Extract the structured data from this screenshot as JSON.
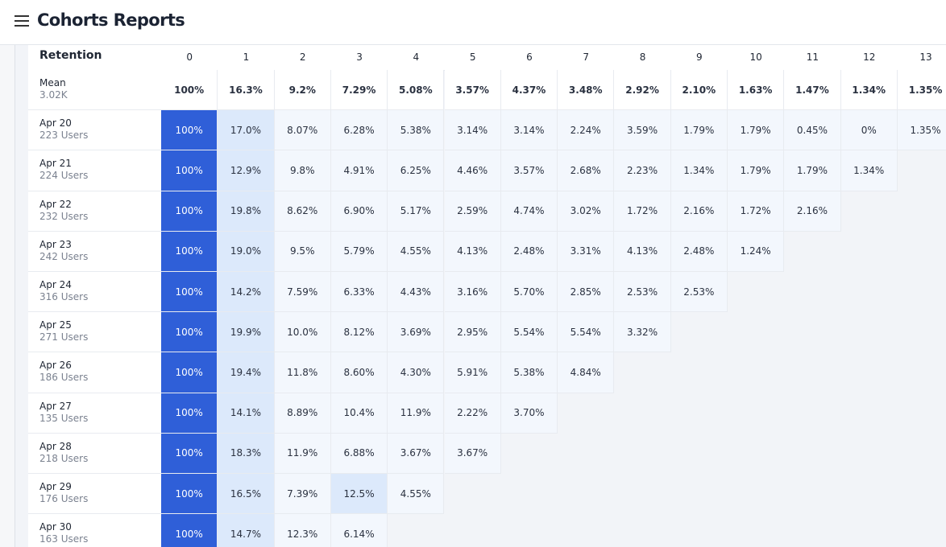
{
  "header": {
    "title": "Cohorts Reports"
  },
  "table": {
    "corner": "Retention",
    "columns": [
      "0",
      "1",
      "2",
      "3",
      "4",
      "5",
      "6",
      "7",
      "8",
      "9",
      "10",
      "11",
      "12",
      "13"
    ],
    "mean": {
      "label": "Mean",
      "sub": "3.02K",
      "cells": [
        "100%",
        "16.3%",
        "9.2%",
        "7.29%",
        "5.08%",
        "3.57%",
        "4.37%",
        "3.48%",
        "2.92%",
        "2.10%",
        "1.63%",
        "1.47%",
        "1.34%",
        "1.35%"
      ]
    },
    "rows": [
      {
        "label": "Apr 20",
        "sub": "223 Users",
        "cells": [
          "100%",
          "17.0%",
          "8.07%",
          "6.28%",
          "5.38%",
          "3.14%",
          "3.14%",
          "2.24%",
          "3.59%",
          "1.79%",
          "1.79%",
          "0.45%",
          "0%",
          "1.35%"
        ]
      },
      {
        "label": "Apr 21",
        "sub": "224 Users",
        "cells": [
          "100%",
          "12.9%",
          "9.8%",
          "4.91%",
          "6.25%",
          "4.46%",
          "3.57%",
          "2.68%",
          "2.23%",
          "1.34%",
          "1.79%",
          "1.79%",
          "1.34%"
        ]
      },
      {
        "label": "Apr 22",
        "sub": "232 Users",
        "cells": [
          "100%",
          "19.8%",
          "8.62%",
          "6.90%",
          "5.17%",
          "2.59%",
          "4.74%",
          "3.02%",
          "1.72%",
          "2.16%",
          "1.72%",
          "2.16%"
        ]
      },
      {
        "label": "Apr 23",
        "sub": "242 Users",
        "cells": [
          "100%",
          "19.0%",
          "9.5%",
          "5.79%",
          "4.55%",
          "4.13%",
          "2.48%",
          "3.31%",
          "4.13%",
          "2.48%",
          "1.24%"
        ]
      },
      {
        "label": "Apr 24",
        "sub": "316 Users",
        "cells": [
          "100%",
          "14.2%",
          "7.59%",
          "6.33%",
          "4.43%",
          "3.16%",
          "5.70%",
          "2.85%",
          "2.53%",
          "2.53%"
        ]
      },
      {
        "label": "Apr 25",
        "sub": "271 Users",
        "cells": [
          "100%",
          "19.9%",
          "10.0%",
          "8.12%",
          "3.69%",
          "2.95%",
          "5.54%",
          "5.54%",
          "3.32%"
        ]
      },
      {
        "label": "Apr 26",
        "sub": "186 Users",
        "cells": [
          "100%",
          "19.4%",
          "11.8%",
          "8.60%",
          "4.30%",
          "5.91%",
          "5.38%",
          "4.84%"
        ]
      },
      {
        "label": "Apr 27",
        "sub": "135 Users",
        "cells": [
          "100%",
          "14.1%",
          "8.89%",
          "10.4%",
          "11.9%",
          "2.22%",
          "3.70%"
        ]
      },
      {
        "label": "Apr 28",
        "sub": "218 Users",
        "cells": [
          "100%",
          "18.3%",
          "11.9%",
          "6.88%",
          "3.67%",
          "3.67%"
        ]
      },
      {
        "label": "Apr 29",
        "sub": "176 Users",
        "cells": [
          "100%",
          "16.5%",
          "7.39%",
          "12.5%",
          "4.55%"
        ]
      },
      {
        "label": "Apr 30",
        "sub": "163 Users",
        "cells": [
          "100%",
          "14.7%",
          "12.3%",
          "6.14%"
        ]
      }
    ]
  }
}
